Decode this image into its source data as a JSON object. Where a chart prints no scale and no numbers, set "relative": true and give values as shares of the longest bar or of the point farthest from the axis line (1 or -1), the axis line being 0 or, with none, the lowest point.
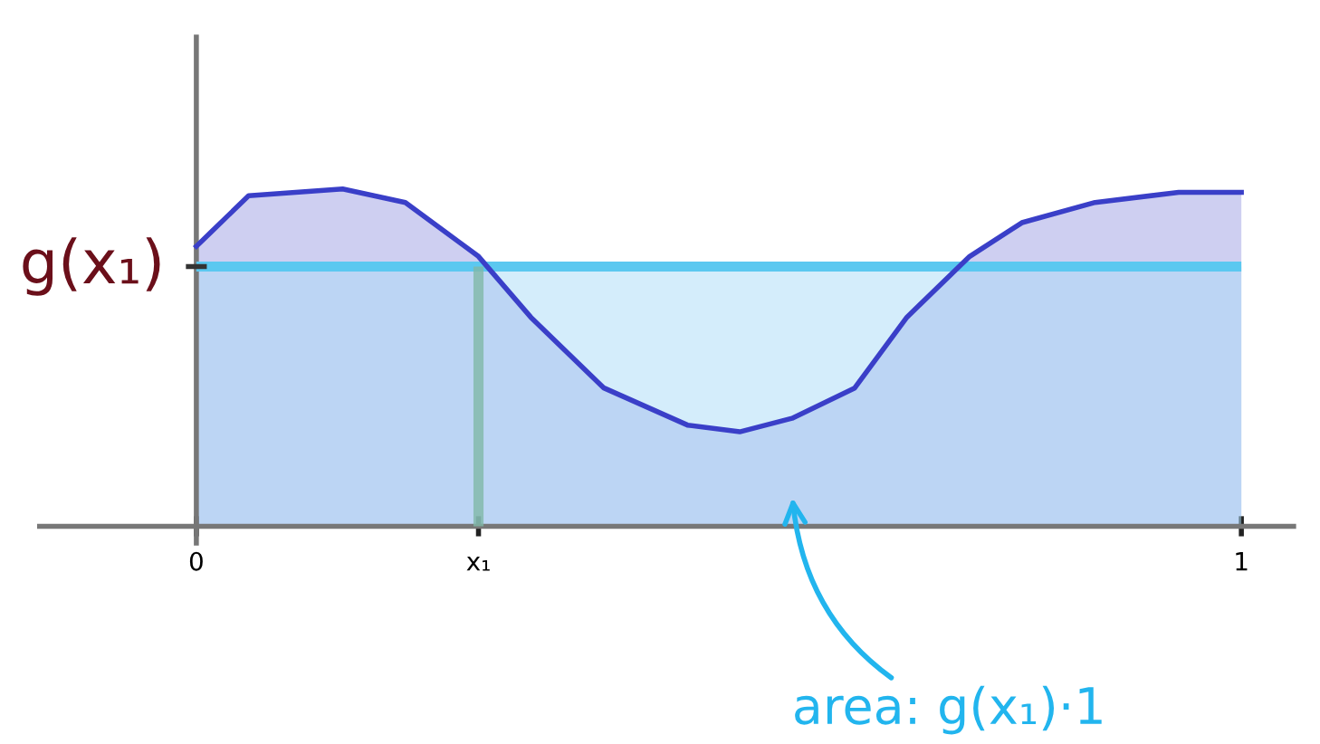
{
  "chart_data": {
    "type": "area",
    "relative": true,
    "x": [
      0,
      0.05,
      0.14,
      0.2,
      0.27,
      0.32,
      0.39,
      0.47,
      0.52,
      0.57,
      0.63,
      0.68,
      0.74,
      0.79,
      0.86,
      0.94,
      1.0
    ],
    "series": [
      {
        "color": "#3a3fc8",
        "values": [
          0.83,
          0.98,
          1.0,
          0.96,
          0.8,
          0.62,
          0.41,
          0.3,
          0.28,
          0.32,
          0.41,
          0.62,
          0.8,
          0.9,
          0.96,
          0.99,
          0.99
        ]
      }
    ],
    "xlim": [
      -0.15,
      1.05
    ],
    "xticks": [
      0,
      {
        "value": 0.27,
        "label": "x₁"
      },
      1
    ],
    "ref_lines": [
      {
        "axis": "y",
        "value": 0.77,
        "label": "g(x₁)",
        "color": "#5bc8f0"
      },
      {
        "axis": "x",
        "value": 0.27,
        "label": null,
        "color": "#7fb8a8"
      }
    ],
    "bands": [
      {
        "axis": "y",
        "from": 0,
        "to": 0.77,
        "label": null,
        "color": "#a9dcf7"
      }
    ],
    "annotations": [
      "area: g(x₁)·1"
    ],
    "grid": false,
    "legend": false
  }
}
